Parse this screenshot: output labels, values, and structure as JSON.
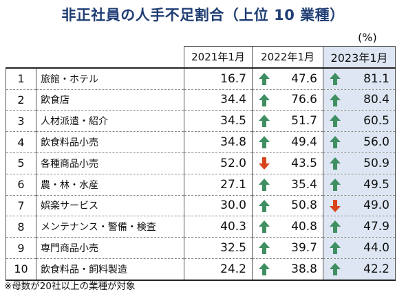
{
  "title": "非正社員の人手不足割合（上位 10 業種）",
  "unit": "(%)",
  "note": "※母数が20社以上の業種が対象",
  "chart_data": {
    "type": "table",
    "columns": [
      "2021年1月",
      "2022年1月",
      "2023年1月"
    ],
    "highlight_column": "2023年1月",
    "rows": [
      {
        "rank": "1",
        "industry": "旅館・ホテル",
        "values": [
          "16.7",
          "47.6",
          "81.1"
        ],
        "trend": [
          "",
          "up",
          "up"
        ]
      },
      {
        "rank": "2",
        "industry": "飲食店",
        "values": [
          "34.4",
          "76.6",
          "80.4"
        ],
        "trend": [
          "",
          "up",
          "up"
        ]
      },
      {
        "rank": "3",
        "industry": "人材派遣・紹介",
        "values": [
          "34.5",
          "51.7",
          "60.5"
        ],
        "trend": [
          "",
          "up",
          "up"
        ]
      },
      {
        "rank": "4",
        "industry": "飲食料品小売",
        "values": [
          "34.8",
          "49.4",
          "56.0"
        ],
        "trend": [
          "",
          "up",
          "up"
        ]
      },
      {
        "rank": "5",
        "industry": "各種商品小売",
        "values": [
          "52.0",
          "43.5",
          "50.9"
        ],
        "trend": [
          "",
          "down",
          "up"
        ]
      },
      {
        "rank": "6",
        "industry": "農・林・水産",
        "values": [
          "27.1",
          "35.4",
          "49.5"
        ],
        "trend": [
          "",
          "up",
          "up"
        ]
      },
      {
        "rank": "7",
        "industry": "娯楽サービス",
        "values": [
          "30.0",
          "50.8",
          "49.0"
        ],
        "trend": [
          "",
          "up",
          "down"
        ]
      },
      {
        "rank": "8",
        "industry": "メンテナンス・警備・検査",
        "values": [
          "40.3",
          "40.8",
          "47.9"
        ],
        "trend": [
          "",
          "up",
          "up"
        ]
      },
      {
        "rank": "9",
        "industry": "専門商品小売",
        "values": [
          "32.5",
          "39.7",
          "44.0"
        ],
        "trend": [
          "",
          "up",
          "up"
        ]
      },
      {
        "rank": "10",
        "industry": "飲食料品・飼料製造",
        "values": [
          "24.2",
          "38.8",
          "42.2"
        ],
        "trend": [
          "",
          "up",
          "up"
        ]
      }
    ]
  },
  "colors": {
    "title": "#1f3d73",
    "highlight": "#dde6f2",
    "up_arrow": "#3f8f62",
    "down_arrow": "#d9441b"
  }
}
